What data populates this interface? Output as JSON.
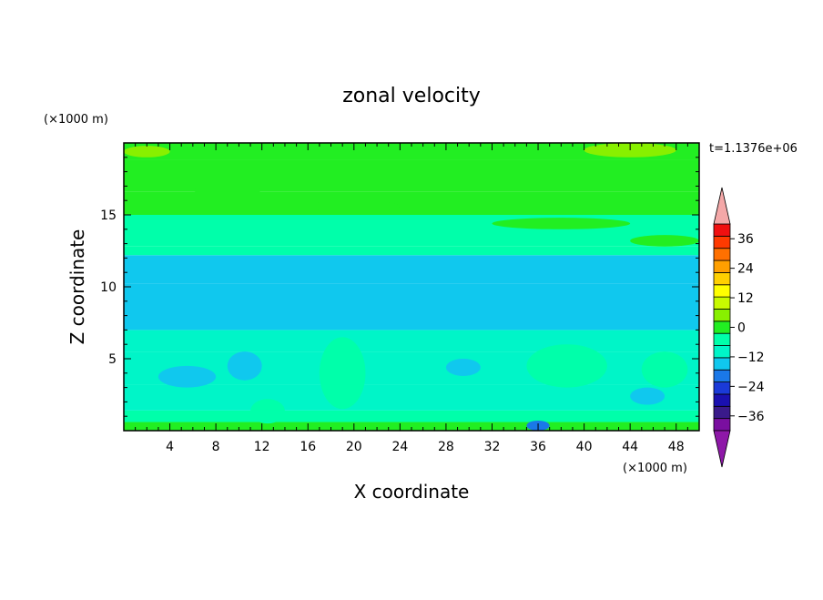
{
  "chart_data": {
    "type": "heatmap",
    "title": "zonal velocity",
    "xlabel": "X coordinate",
    "ylabel": "Z coordinate",
    "x_unit": "(×1000 m)",
    "y_unit": "(×1000 m)",
    "time_label": "t=1.1376e+06",
    "xlim": [
      0,
      50
    ],
    "ylim": [
      0,
      20
    ],
    "x_ticks": [
      4,
      8,
      12,
      16,
      20,
      24,
      28,
      32,
      36,
      40,
      44,
      48
    ],
    "y_ticks": [
      5,
      10,
      15
    ],
    "colorbar": {
      "range": [
        -42,
        42
      ],
      "step": 6,
      "tick_values": [
        -36,
        -24,
        -12,
        0,
        12,
        24,
        36
      ],
      "tick_labels": [
        "−36",
        "−24",
        "−12",
        "0",
        "12",
        "24",
        "36"
      ],
      "extend": "both",
      "colors": [
        "#7a0fa0",
        "#3a1a8a",
        "#1a10b0",
        "#1a3ad8",
        "#1a78e8",
        "#10c8ee",
        "#00f5c8",
        "#00ffaa",
        "#22ee22",
        "#88f000",
        "#c8fa00",
        "#ffff00",
        "#ffd000",
        "#ffa000",
        "#ff7000",
        "#ff3a00",
        "#f01010"
      ],
      "low_color": "#8e18a8",
      "high_color": "#f4a8a8"
    },
    "bands": [
      {
        "z": [
          0,
          0.6
        ],
        "value": 10
      },
      {
        "z": [
          0.6,
          1.4
        ],
        "value": 4
      },
      {
        "z": [
          1.4,
          3.2
        ],
        "value": -3
      },
      {
        "z": [
          3.2,
          5.5
        ],
        "value": -6
      },
      {
        "z": [
          5.5,
          7.0
        ],
        "value": -5
      },
      {
        "z": [
          7.0,
          10.2
        ],
        "value": -7
      },
      {
        "z": [
          10.2,
          12.2
        ],
        "value": -8
      },
      {
        "z": [
          12.2,
          12.8
        ],
        "value": 2
      },
      {
        "z": [
          12.8,
          15.0
        ],
        "value": 4
      },
      {
        "z": [
          15.0,
          16.6
        ],
        "value": 7
      },
      {
        "z": [
          16.6,
          18.8
        ],
        "value": 9
      },
      {
        "z": [
          18.8,
          20.0
        ],
        "value": 11
      }
    ],
    "features": [
      {
        "x": [
          17,
          21
        ],
        "z": [
          1.5,
          6.5
        ],
        "value": 5
      },
      {
        "x": [
          35,
          42
        ],
        "z": [
          3.0,
          6.0
        ],
        "value": 5
      },
      {
        "x": [
          45,
          49
        ],
        "z": [
          3.0,
          5.5
        ],
        "value": 5
      },
      {
        "x": [
          11,
          14
        ],
        "z": [
          0.5,
          2.2
        ],
        "value": 5
      },
      {
        "x": [
          3,
          8
        ],
        "z": [
          3.0,
          4.5
        ],
        "value": -10
      },
      {
        "x": [
          9,
          12
        ],
        "z": [
          3.5,
          5.5
        ],
        "value": -10
      },
      {
        "x": [
          28,
          31
        ],
        "z": [
          3.8,
          5.0
        ],
        "value": -10
      },
      {
        "x": [
          44,
          47
        ],
        "z": [
          1.8,
          3.0
        ],
        "value": -10
      },
      {
        "x": [
          35,
          37
        ],
        "z": [
          0,
          0.7
        ],
        "value": -14
      },
      {
        "x": [
          33,
          36
        ],
        "z": [
          10.5,
          11.2
        ],
        "value": -10
      },
      {
        "x": [
          6,
          12
        ],
        "z": [
          16.4,
          17.0
        ],
        "value": 9
      },
      {
        "x": [
          16,
          24
        ],
        "z": [
          15.2,
          16.0
        ],
        "value": 9
      },
      {
        "x": [
          32,
          44
        ],
        "z": [
          14.0,
          14.8
        ],
        "value": 7
      },
      {
        "x": [
          44,
          50
        ],
        "z": [
          12.8,
          13.6
        ],
        "value": 7
      },
      {
        "x": [
          40,
          48
        ],
        "z": [
          19.0,
          20.0
        ],
        "value": 12
      },
      {
        "x": [
          0,
          4
        ],
        "z": [
          19.0,
          19.8
        ],
        "value": 12
      }
    ]
  }
}
